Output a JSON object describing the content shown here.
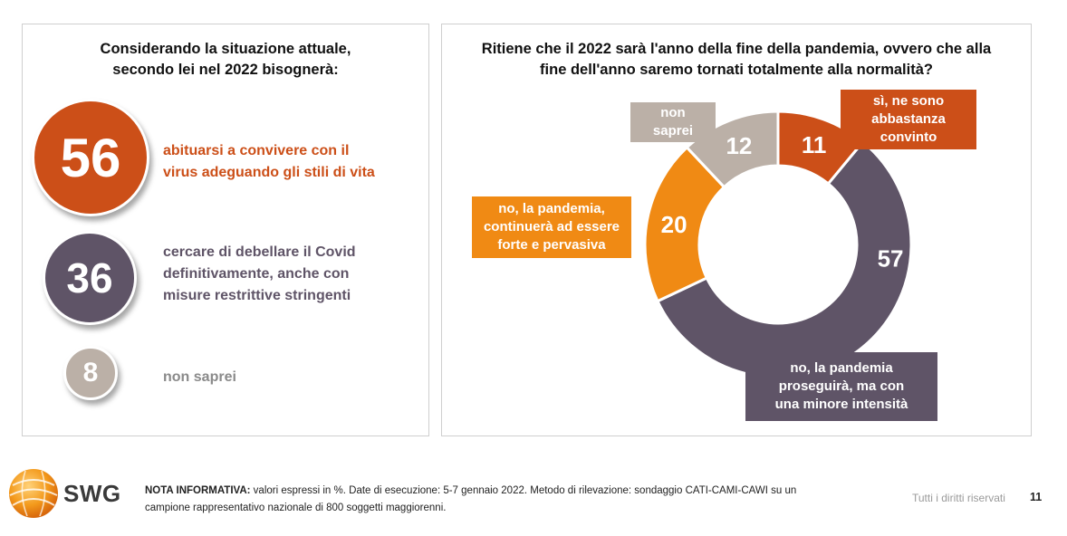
{
  "left_panel": {
    "title_line1": "Considerando la situazione attuale,",
    "title_line2": "secondo lei nel 2022 bisognerà:",
    "items": [
      {
        "value": "56",
        "text_line1": "abituarsi a convivere con il",
        "text_line2": "virus adeguando gli stili di vita",
        "color": "#cc4f18"
      },
      {
        "value": "36",
        "text_line1": "cercare di debellare il Covid",
        "text_line2": "definitivamente, anche con",
        "text_line3": "misure restrittive stringenti",
        "color": "#5f5467"
      },
      {
        "value": "8",
        "text_line1": "non saprei",
        "color": "#bbb0a7"
      }
    ]
  },
  "right_panel": {
    "title_line1": "Ritiene che il 2022 sarà l'anno della fine della pandemia, ovvero che alla",
    "title_line2": "fine dell'anno saremo tornati totalmente alla normalità?",
    "labels": {
      "si": [
        "sì, ne sono",
        "abbastanza",
        "convinto"
      ],
      "non_saprei": [
        "non",
        "saprei"
      ],
      "no_forte": [
        "no, la pandemia,",
        "continuerà ad essere",
        "forte e pervasiva"
      ],
      "no_minore": [
        "no, la pandemia",
        "proseguirà, ma con",
        "una minore intensità"
      ]
    }
  },
  "chart_data": [
    {
      "type": "bar",
      "categories": [
        "abituarsi a convivere con il virus adeguando gli stili di vita",
        "cercare di debellare il Covid definitivamente, anche con misure restrittive stringenti",
        "non saprei"
      ],
      "values": [
        56,
        36,
        8
      ],
      "title": "Considerando la situazione attuale, secondo lei nel 2022 bisognerà:"
    },
    {
      "type": "pie",
      "title": "Ritiene che il 2022 sarà l'anno della fine della pandemia, ovvero che alla fine dell'anno saremo tornati totalmente alla normalità?",
      "categories": [
        "sì, ne sono abbastanza convinto",
        "no, la pandemia proseguirà, ma con una minore intensità",
        "no, la pandemia, continuerà ad essere forte e pervasiva",
        "non saprei"
      ],
      "values": [
        11,
        57,
        20,
        12
      ],
      "colors": [
        "#cc4f18",
        "#5f5467",
        "#f08a14",
        "#bbb0a7"
      ]
    }
  ],
  "footer": {
    "logo_text": "SWG",
    "note_label": "NOTA INFORMATIVA:",
    "note_text": " valori espressi in %. Date di esecuzione: 5-7 gennaio 2022. Metodo di rilevazione: sondaggio CATI-CAMI-CAWI su un campione rappresentativo nazionale di 800 soggetti maggiorenni.",
    "rights": "Tutti i diritti riservati",
    "page": "11"
  }
}
